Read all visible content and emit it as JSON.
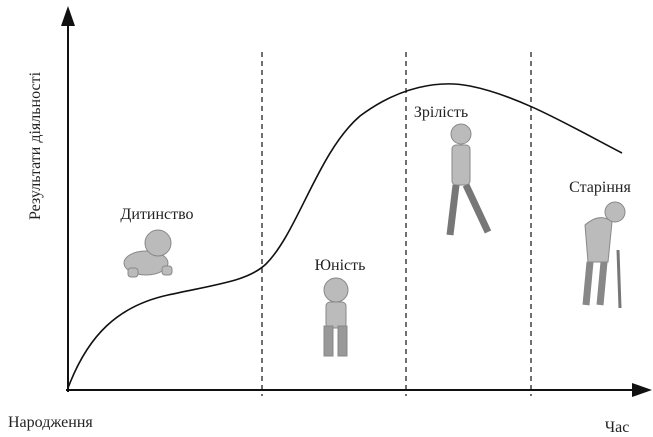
{
  "axes": {
    "y_label": "Результати діяльності",
    "origin_label": "Народження",
    "x_label": "Час"
  },
  "stages": [
    {
      "label": "Дитинство"
    },
    {
      "label": "Юність"
    },
    {
      "label": "Зрілість"
    },
    {
      "label": "Старіння"
    }
  ]
}
